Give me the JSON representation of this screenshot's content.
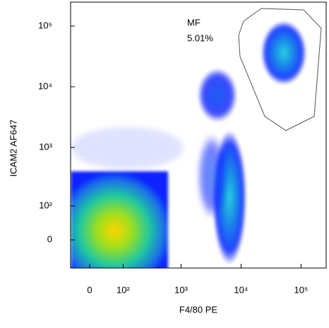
{
  "chart_data": {
    "type": "density",
    "x_label": "F4/80 PE",
    "y_label": "ICAM2 AF647",
    "scale": "biexponential",
    "xlim": [
      -48,
      262000
    ],
    "ylim": [
      -77,
      248000
    ],
    "xticks": [
      0,
      {
        "value": 100,
        "label": "10²"
      },
      {
        "value": 1000,
        "label": "10³"
      },
      {
        "value": 10000,
        "label": "10⁴"
      },
      {
        "value": 100000,
        "label": "10⁵"
      }
    ],
    "yticks": [
      0,
      {
        "value": 100,
        "label": "10²"
      },
      {
        "value": 1000,
        "label": "10³"
      },
      {
        "value": 10000,
        "label": "10⁴"
      },
      {
        "value": 100000,
        "label": "10⁵"
      }
    ],
    "gate": {
      "name": "MF",
      "percent_label": "5.01%",
      "percent": 5.01
    }
  }
}
